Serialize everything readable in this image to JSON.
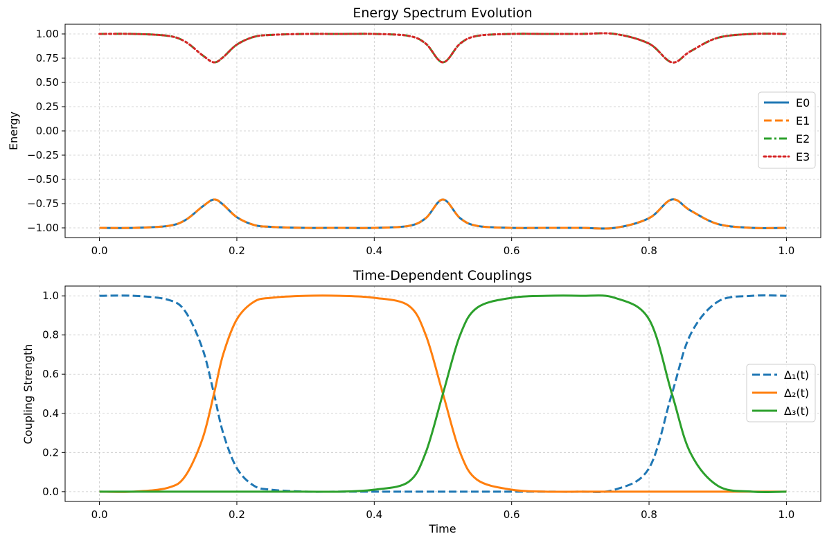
{
  "chart_data": [
    {
      "type": "line",
      "title": "Energy Spectrum Evolution",
      "xlabel": "",
      "ylabel": "Energy",
      "xlim": [
        -0.05,
        1.05
      ],
      "ylim": [
        -1.1,
        1.1
      ],
      "x_ticks": [
        0.0,
        0.2,
        0.4,
        0.6,
        0.8,
        1.0
      ],
      "x_tick_labels": [
        "0.0",
        "0.2",
        "0.4",
        "0.6",
        "0.8",
        "1.0"
      ],
      "y_ticks": [
        -1.0,
        -0.75,
        -0.5,
        -0.25,
        0.0,
        0.25,
        0.5,
        0.75,
        1.0
      ],
      "y_tick_labels": [
        "−1.00",
        "−0.75",
        "−0.50",
        "−0.25",
        "0.00",
        "0.25",
        "0.50",
        "0.75",
        "1.00"
      ],
      "grid": true,
      "legend_position": "center-right",
      "x": [
        0.0,
        0.05,
        0.1,
        0.125,
        0.15,
        0.1667,
        0.18,
        0.2,
        0.225,
        0.25,
        0.3,
        0.35,
        0.4,
        0.45,
        0.475,
        0.5,
        0.525,
        0.55,
        0.6,
        0.65,
        0.7,
        0.75,
        0.8,
        0.8333,
        0.86,
        0.9,
        0.95,
        1.0
      ],
      "series": [
        {
          "name": "E0",
          "color": "#1f77b4",
          "style": "solid",
          "values": [
            -1.0,
            -1.0,
            -0.98,
            -0.92,
            -0.78,
            -0.707,
            -0.76,
            -0.89,
            -0.97,
            -0.99,
            -1.0,
            -1.0,
            -1.0,
            -0.98,
            -0.9,
            -0.707,
            -0.9,
            -0.98,
            -1.0,
            -1.0,
            -1.0,
            -1.0,
            -0.9,
            -0.707,
            -0.82,
            -0.96,
            -1.0,
            -1.0
          ]
        },
        {
          "name": "E1",
          "color": "#ff7f0e",
          "style": "dashed",
          "values": [
            -1.0,
            -1.0,
            -0.98,
            -0.92,
            -0.78,
            -0.707,
            -0.76,
            -0.89,
            -0.97,
            -0.99,
            -1.0,
            -1.0,
            -1.0,
            -0.98,
            -0.9,
            -0.707,
            -0.9,
            -0.98,
            -1.0,
            -1.0,
            -1.0,
            -1.0,
            -0.9,
            -0.707,
            -0.82,
            -0.96,
            -1.0,
            -1.0
          ]
        },
        {
          "name": "E2",
          "color": "#2ca02c",
          "style": "dashdot",
          "values": [
            1.0,
            1.0,
            0.98,
            0.92,
            0.78,
            0.707,
            0.76,
            0.89,
            0.97,
            0.99,
            1.0,
            1.0,
            1.0,
            0.98,
            0.9,
            0.707,
            0.9,
            0.98,
            1.0,
            1.0,
            1.0,
            1.0,
            0.9,
            0.707,
            0.82,
            0.96,
            1.0,
            1.0
          ]
        },
        {
          "name": "E3",
          "color": "#d62728",
          "style": "dotted",
          "values": [
            1.0,
            1.0,
            0.98,
            0.92,
            0.78,
            0.707,
            0.76,
            0.89,
            0.97,
            0.99,
            1.0,
            1.0,
            1.0,
            0.98,
            0.9,
            0.707,
            0.9,
            0.98,
            1.0,
            1.0,
            1.0,
            1.0,
            0.9,
            0.707,
            0.82,
            0.96,
            1.0,
            1.0
          ]
        }
      ]
    },
    {
      "type": "line",
      "title": "Time-Dependent Couplings",
      "xlabel": "Time",
      "ylabel": "Coupling Strength",
      "xlim": [
        -0.05,
        1.05
      ],
      "ylim": [
        -0.05,
        1.05
      ],
      "x_ticks": [
        0.0,
        0.2,
        0.4,
        0.6,
        0.8,
        1.0
      ],
      "x_tick_labels": [
        "0.0",
        "0.2",
        "0.4",
        "0.6",
        "0.8",
        "1.0"
      ],
      "y_ticks": [
        0.0,
        0.2,
        0.4,
        0.6,
        0.8,
        1.0
      ],
      "y_tick_labels": [
        "0.0",
        "0.2",
        "0.4",
        "0.6",
        "0.8",
        "1.0"
      ],
      "grid": true,
      "legend_position": "center-right",
      "x": [
        0.0,
        0.05,
        0.1,
        0.125,
        0.15,
        0.1667,
        0.18,
        0.2,
        0.225,
        0.25,
        0.3,
        0.35,
        0.4,
        0.45,
        0.475,
        0.5,
        0.525,
        0.55,
        0.6,
        0.65,
        0.7,
        0.75,
        0.8,
        0.8333,
        0.86,
        0.9,
        0.95,
        1.0
      ],
      "series": [
        {
          "name": "Δ₁(t)",
          "color": "#1f77b4",
          "style": "dashed",
          "values": [
            1.0,
            1.0,
            0.98,
            0.92,
            0.73,
            0.5,
            0.3,
            0.12,
            0.03,
            0.01,
            0.0,
            0.0,
            0.0,
            0.0,
            0.0,
            0.0,
            0.0,
            0.0,
            0.0,
            0.0,
            0.0,
            0.01,
            0.12,
            0.5,
            0.8,
            0.97,
            1.0,
            1.0
          ]
        },
        {
          "name": "Δ₂(t)",
          "color": "#ff7f0e",
          "style": "solid",
          "values": [
            0.0,
            0.0,
            0.02,
            0.08,
            0.27,
            0.5,
            0.7,
            0.88,
            0.97,
            0.99,
            1.0,
            1.0,
            0.99,
            0.95,
            0.8,
            0.5,
            0.2,
            0.06,
            0.01,
            0.0,
            0.0,
            0.0,
            0.0,
            0.0,
            0.0,
            0.0,
            0.0,
            0.0
          ]
        },
        {
          "name": "Δ₃(t)",
          "color": "#2ca02c",
          "style": "solid",
          "values": [
            0.0,
            0.0,
            0.0,
            0.0,
            0.0,
            0.0,
            0.0,
            0.0,
            0.0,
            0.0,
            0.0,
            0.0,
            0.01,
            0.05,
            0.2,
            0.5,
            0.8,
            0.94,
            0.99,
            1.0,
            1.0,
            0.99,
            0.88,
            0.5,
            0.2,
            0.03,
            0.0,
            0.0
          ]
        }
      ]
    }
  ]
}
